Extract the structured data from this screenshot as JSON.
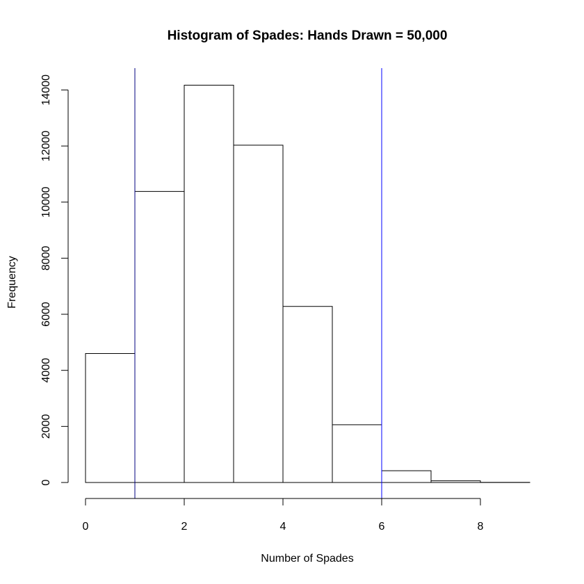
{
  "chart_data": {
    "type": "bar",
    "title": "Histogram of Spades: Hands Drawn = 50,000",
    "xlabel": "Number of Spades",
    "ylabel": "Frequency",
    "bins": [
      {
        "start": 0,
        "end": 1,
        "value": 4600
      },
      {
        "start": 1,
        "end": 2,
        "value": 10380
      },
      {
        "start": 2,
        "end": 3,
        "value": 14170
      },
      {
        "start": 3,
        "end": 4,
        "value": 12030
      },
      {
        "start": 4,
        "end": 5,
        "value": 6280
      },
      {
        "start": 5,
        "end": 6,
        "value": 2060
      },
      {
        "start": 6,
        "end": 7,
        "value": 420
      },
      {
        "start": 7,
        "end": 8,
        "value": 60
      },
      {
        "start": 8,
        "end": 9,
        "value": 5
      }
    ],
    "xlim": [
      0,
      9
    ],
    "ylim": [
      0,
      14700
    ],
    "x_ticks": [
      0,
      2,
      4,
      6,
      8
    ],
    "y_ticks": [
      0,
      2000,
      4000,
      6000,
      8000,
      10000,
      12000,
      14000
    ],
    "reference_lines": [
      {
        "x": 1,
        "color": "#000080"
      },
      {
        "x": 6,
        "color": "#0000ff"
      }
    ],
    "grid": false,
    "bar_color": "#ffffff",
    "bar_edge_color": "#000000"
  }
}
